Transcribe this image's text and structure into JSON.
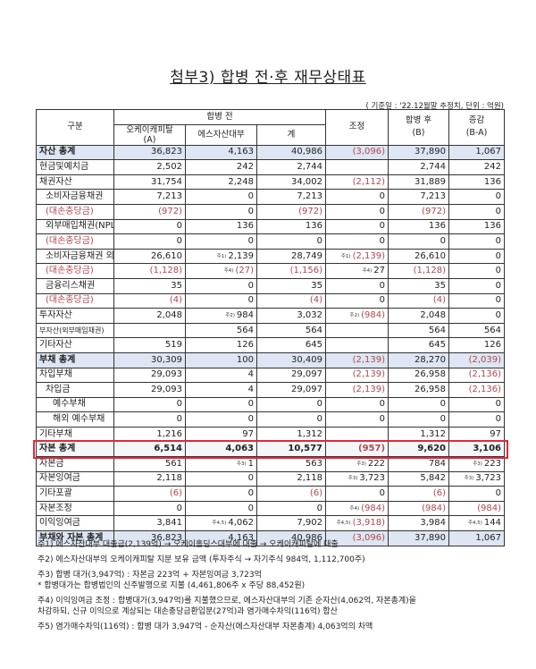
{
  "title": "첨부3) 합병 전·후 재무상태표",
  "basis": "( 기준일 : '22.12월말 추정치, 단위 : 억원)",
  "headers": {
    "item": "구분",
    "pre": "합병 전",
    "ok": "오케이캐피탈\n(A)",
    "es": "에스자산대부",
    "sum": "계",
    "adj": "조정",
    "post": "합병 후\n(B)",
    "diff": "증감\n(B-A)"
  },
  "rows": [
    {
      "label": "자산 총계",
      "a": "36,823",
      "es": "4,163",
      "sum": "40,986",
      "adj": "(3,096)",
      "post": "37,890",
      "diff": "1,067",
      "type": "total"
    },
    {
      "label": "현금및예치금",
      "a": "2,502",
      "es": "242",
      "sum": "2,744",
      "adj": "",
      "post": "2,744",
      "diff": "242"
    },
    {
      "label": "채권자산",
      "a": "31,754",
      "es": "2,248",
      "sum": "34,002",
      "adj": "(2,112)",
      "post": "31,889",
      "diff": "136"
    },
    {
      "label": "소비자금융채권",
      "a": "7,213",
      "es": "0",
      "sum": "7,213",
      "adj": "0",
      "post": "7,213",
      "diff": "0",
      "indent": 1
    },
    {
      "label": "(대손충당금)",
      "a": "(972)",
      "es": "0",
      "sum": "(972)",
      "adj": "0",
      "post": "(972)",
      "diff": "0",
      "indent": 1
    },
    {
      "label": "외부매입채권(NPL)",
      "a": "0",
      "es": "136",
      "sum": "136",
      "adj": "0",
      "post": "136",
      "diff": "136",
      "indent": 1
    },
    {
      "label": "(대손충당금)",
      "a": "0",
      "es": "0",
      "sum": "0",
      "adj": "0",
      "post": "0",
      "diff": "0",
      "indent": 1
    },
    {
      "label": "소비자금융채권 외",
      "a": "26,610",
      "es": "2,139",
      "es_note": "주1)",
      "sum": "28,749",
      "adj": "(2,139)",
      "adj_note": "주1)",
      "post": "26,610",
      "diff": "0",
      "indent": 1
    },
    {
      "label": "(대손충당금)",
      "a": "(1,128)",
      "es": "(27)",
      "es_note": "주4)",
      "sum": "(1,156)",
      "adj": "27",
      "adj_note": "주4)",
      "post": "(1,128)",
      "diff": "0",
      "indent": 1
    },
    {
      "label": "금융리스채권",
      "a": "35",
      "es": "0",
      "sum": "35",
      "adj": "0",
      "post": "35",
      "diff": "0",
      "indent": 1
    },
    {
      "label": "(대손충당금)",
      "a": "(4)",
      "es": "0",
      "sum": "(4)",
      "adj": "0",
      "post": "(4)",
      "diff": "0",
      "indent": 1
    },
    {
      "label": "투자자산",
      "a": "2,048",
      "es": "984",
      "es_note": "주2)",
      "sum": "3,032",
      "adj": "(984)",
      "adj_note": "주2)",
      "post": "2,048",
      "diff": "0"
    },
    {
      "label": "부자산(외부매입채권)",
      "a": "",
      "es": "564",
      "sum": "564",
      "adj": "",
      "post": "564",
      "diff": "564",
      "small": true
    },
    {
      "label": "기타자산",
      "a": "519",
      "es": "126",
      "sum": "645",
      "adj": "",
      "post": "645",
      "diff": "126"
    },
    {
      "label": "부채 총계",
      "a": "30,309",
      "es": "100",
      "sum": "30,409",
      "adj": "(2,139)",
      "post": "28,270",
      "diff": "(2,039)",
      "type": "total"
    },
    {
      "label": "차입부채",
      "a": "29,093",
      "es": "4",
      "sum": "29,097",
      "adj": "(2,139)",
      "post": "26,958",
      "diff": "(2,136)"
    },
    {
      "label": "차입금",
      "a": "29,093",
      "es": "4",
      "sum": "29,097",
      "adj": "(2,139)",
      "post": "26,958",
      "diff": "(2,136)",
      "indent": 1
    },
    {
      "label": "예수부채",
      "a": "0",
      "es": "0",
      "sum": "0",
      "adj": "0",
      "post": "0",
      "diff": "0",
      "indent": 2
    },
    {
      "label": "해외 예수부채",
      "a": "0",
      "es": "0",
      "sum": "0",
      "adj": "0",
      "post": "0",
      "diff": "0",
      "indent": 2
    },
    {
      "label": "기타부채",
      "a": "1,216",
      "es": "97",
      "sum": "1,312",
      "adj": "",
      "post": "1,312",
      "diff": "97"
    },
    {
      "label": "자본 총계",
      "a": "6,514",
      "es": "4,063",
      "sum": "10,577",
      "adj": "(957)",
      "post": "9,620",
      "diff": "3,106",
      "type": "highlight"
    },
    {
      "label": "자본금",
      "a": "561",
      "es": "1",
      "es_note": "주3)",
      "sum": "563",
      "adj": "222",
      "adj_note": "주3)",
      "post": "784",
      "diff": "223",
      "diff_note": "주3)"
    },
    {
      "label": "자본잉여금",
      "a": "2,118",
      "es": "0",
      "sum": "2,118",
      "adj": "3,723",
      "adj_note": "주3)",
      "post": "5,842",
      "diff": "3,723",
      "diff_note": "주3)"
    },
    {
      "label": "기타포괄",
      "a": "(6)",
      "es": "0",
      "sum": "(6)",
      "adj": "0",
      "post": "(6)",
      "diff": "0"
    },
    {
      "label": "자본조정",
      "a": "0",
      "es": "0",
      "sum": "0",
      "adj": "(984)",
      "adj_note": "주4)",
      "post": "(984)",
      "diff": "(984)"
    },
    {
      "label": "이익잉여금",
      "a": "3,841",
      "es": "4,062",
      "es_note": "주4,5)",
      "sum": "7,902",
      "adj": "(3,918)",
      "adj_note": "주4,5)",
      "post": "3,984",
      "diff": "144",
      "diff_note": "주4,5)"
    },
    {
      "label": "부채와 자본 총계",
      "a": "36,823",
      "es": "4,163",
      "sum": "40,986",
      "adj": "(3,096)",
      "post": "37,890",
      "diff": "1,067",
      "type": "total"
    }
  ],
  "notes": [
    "주1) 에스자산대부 대출금(2,139억) → 오케이홀딩스대부에 대출 → 오케이캐피탈에 대출",
    "주2) 에스자산대부의 오케이캐피탈 지분 보유 금액 (투자주식 → 자기주식 984억, 1,112,700주)",
    "주3) 합병 대가(3,947억) : 자본금 223억 + 자본잉여금 3,723억",
    "* 합병대가는 합병법인의 신주발행으로 지불 (4,461,806주 x 주당 88,452원)",
    "주4) 이익잉여금 조정 : 합병대가(3,947억)를 지불했으므로, 에스자산대부의 기존 순자산(4,062억, 자본총계)을",
    "차감하되, 신규 이익으로 계상되는 대손충당금환입분(27억)과 염가매수차익(116억) 합산",
    "주5) 염가매수차익(116억) : 합병 대가 3,947억 - 순자산(에스자산대부 자본총계) 4,063억의 차액"
  ]
}
